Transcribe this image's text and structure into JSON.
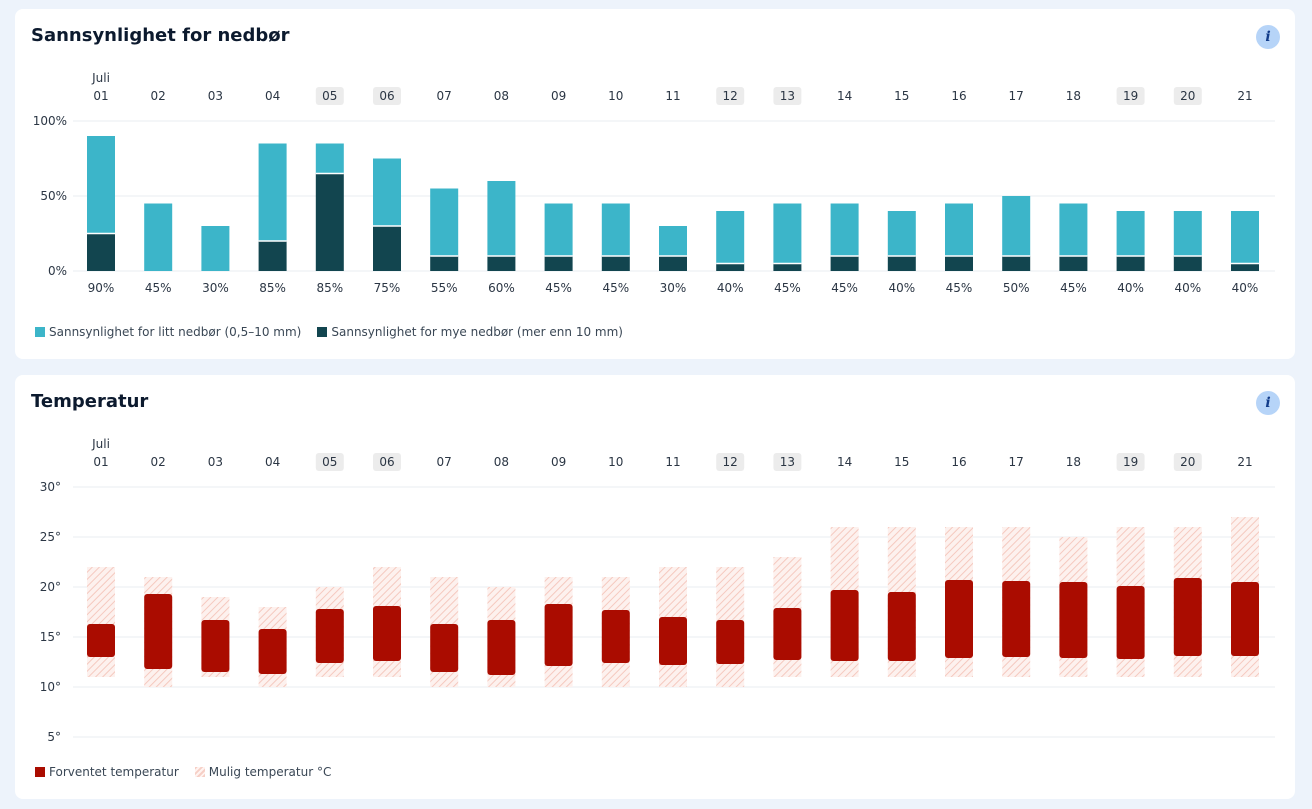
{
  "colors": {
    "light_rain": "#3cb5c9",
    "heavy_rain": "#12454f",
    "expected_temp": "#aa0c00",
    "possible_temp": "#f6cfc6",
    "weekend_badge": "#ececec",
    "grid": "#e9edf2"
  },
  "precip": {
    "title": "Sannsynlighet for nedbør",
    "info_icon": "i",
    "legend": {
      "light": "Sannsynlighet for litt nedbør (0,5–10 mm)",
      "heavy": "Sannsynlighet for mye nedbør (mer enn 10 mm)"
    }
  },
  "temperature": {
    "title": "Temperatur",
    "info_icon": "i",
    "legend": {
      "expected": "Forventet temperatur",
      "possible": "Mulig temperatur °C"
    }
  },
  "chart_data": [
    {
      "type": "bar",
      "title": "Sannsynlighet for nedbør",
      "month_label": "Juli",
      "categories": [
        "01",
        "02",
        "03",
        "04",
        "05",
        "06",
        "07",
        "08",
        "09",
        "10",
        "11",
        "12",
        "13",
        "14",
        "15",
        "16",
        "17",
        "18",
        "19",
        "20",
        "21"
      ],
      "highlighted": [
        "05",
        "06",
        "12",
        "13",
        "19",
        "20"
      ],
      "y_ticks": [
        "0%",
        "50%",
        "100%"
      ],
      "ylim": [
        0,
        100
      ],
      "stacked": true,
      "series": [
        {
          "name": "Sannsynlighet for mye nedbør (mer enn 10 mm)",
          "values": [
            25,
            0,
            0,
            20,
            65,
            30,
            10,
            10,
            10,
            10,
            10,
            5,
            5,
            10,
            10,
            10,
            10,
            10,
            10,
            10,
            5
          ]
        },
        {
          "name": "Sannsynlighet for litt nedbør (0,5–10 mm)",
          "values": [
            65,
            45,
            30,
            65,
            20,
            45,
            45,
            50,
            35,
            35,
            20,
            35,
            40,
            35,
            30,
            35,
            40,
            35,
            30,
            30,
            35
          ]
        }
      ],
      "totals": [
        90,
        45,
        30,
        85,
        85,
        75,
        55,
        60,
        45,
        45,
        30,
        40,
        45,
        45,
        40,
        45,
        50,
        45,
        40,
        40,
        40
      ],
      "total_labels": [
        "90%",
        "45%",
        "30%",
        "85%",
        "85%",
        "75%",
        "55%",
        "60%",
        "45%",
        "45%",
        "30%",
        "40%",
        "45%",
        "45%",
        "40%",
        "45%",
        "50%",
        "45%",
        "40%",
        "40%",
        "40%"
      ]
    },
    {
      "type": "range-bar",
      "title": "Temperatur",
      "month_label": "Juli",
      "categories": [
        "01",
        "02",
        "03",
        "04",
        "05",
        "06",
        "07",
        "08",
        "09",
        "10",
        "11",
        "12",
        "13",
        "14",
        "15",
        "16",
        "17",
        "18",
        "19",
        "20",
        "21"
      ],
      "highlighted": [
        "05",
        "06",
        "12",
        "13",
        "19",
        "20"
      ],
      "y_ticks": [
        "5°",
        "10°",
        "15°",
        "20°",
        "25°",
        "30°"
      ],
      "ylim": [
        5,
        30
      ],
      "series": [
        {
          "name": "Forventet temperatur",
          "low": [
            13,
            11.8,
            11.5,
            11.3,
            12.4,
            12.6,
            11.5,
            11.2,
            12.1,
            12.4,
            12.2,
            12.3,
            12.7,
            12.6,
            12.6,
            12.9,
            13,
            12.9,
            12.8,
            13.1,
            13.1
          ],
          "high": [
            16.3,
            19.3,
            16.7,
            15.8,
            17.8,
            18.1,
            16.3,
            16.7,
            18.3,
            17.7,
            17,
            16.7,
            17.9,
            19.7,
            19.5,
            20.7,
            20.6,
            20.5,
            20.1,
            20.9,
            20.5
          ]
        },
        {
          "name": "Mulig temperatur °C",
          "low": [
            11,
            10,
            11,
            10,
            11,
            11,
            10,
            10,
            10,
            10,
            10,
            10,
            11,
            11,
            11,
            11,
            11,
            11,
            11,
            11,
            11
          ],
          "high": [
            22,
            21,
            19,
            18,
            20,
            22,
            21,
            20,
            21,
            21,
            22,
            22,
            23,
            26,
            26,
            26,
            26,
            25,
            26,
            26,
            27
          ]
        }
      ]
    }
  ]
}
